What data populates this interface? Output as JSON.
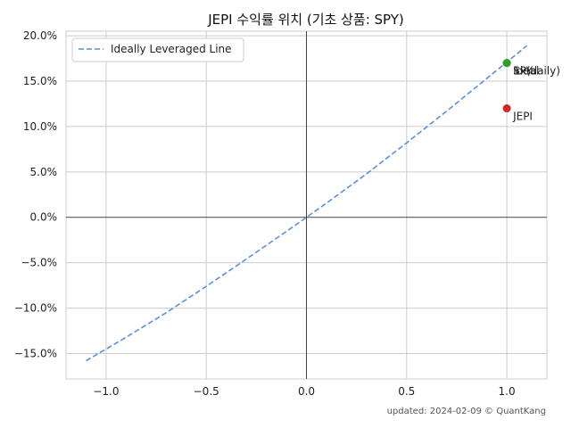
{
  "chart_data": {
    "type": "scatter",
    "title": "JEPI 수익률 위치 (기초 상품: SPY)",
    "xlim": [
      -1.2,
      1.2
    ],
    "ylim": [
      -0.178,
      0.205
    ],
    "x_ticks": [
      -1.0,
      -0.5,
      0.0,
      0.5,
      1.0
    ],
    "x_tick_labels": [
      "−1.0",
      "−0.5",
      "0.0",
      "0.5",
      "1.0"
    ],
    "y_ticks": [
      -0.15,
      -0.1,
      -0.05,
      0.0,
      0.05,
      0.1,
      0.15,
      0.2
    ],
    "y_tick_labels": [
      "−15.0%",
      "−10.0%",
      "−5.0%",
      "0.0%",
      "5.0%",
      "10.0%",
      "15.0%",
      "20.0%"
    ],
    "grid": true,
    "legend_position": "upper-left",
    "line": {
      "name": "Ideally Leveraged Line",
      "color": "#5b8fdc",
      "style": "dashed",
      "x": [
        -1.1,
        -0.9,
        -0.7,
        -0.5,
        -0.3,
        -0.1,
        0.0,
        0.1,
        0.3,
        0.5,
        0.7,
        0.9,
        1.1
      ],
      "y": [
        -0.158,
        -0.132,
        -0.105,
        -0.076,
        -0.046,
        -0.0155,
        0.0,
        0.0157,
        0.048,
        0.082,
        0.117,
        0.153,
        0.189
      ]
    },
    "points": [
      {
        "label": "SPY",
        "x": 1.0,
        "y": 0.17,
        "color": "#1f77b4"
      },
      {
        "label": "Ideal",
        "x": 1.0,
        "y": 0.17,
        "color": "#ff7f0e"
      },
      {
        "label": "1x(daily)",
        "x": 1.0,
        "y": 0.17,
        "color": "#2ca02c"
      },
      {
        "label": "JEPI",
        "x": 1.0,
        "y": 0.12,
        "color": "#d62728"
      }
    ],
    "footer": "updated: 2024-02-09 © QuantKang"
  }
}
